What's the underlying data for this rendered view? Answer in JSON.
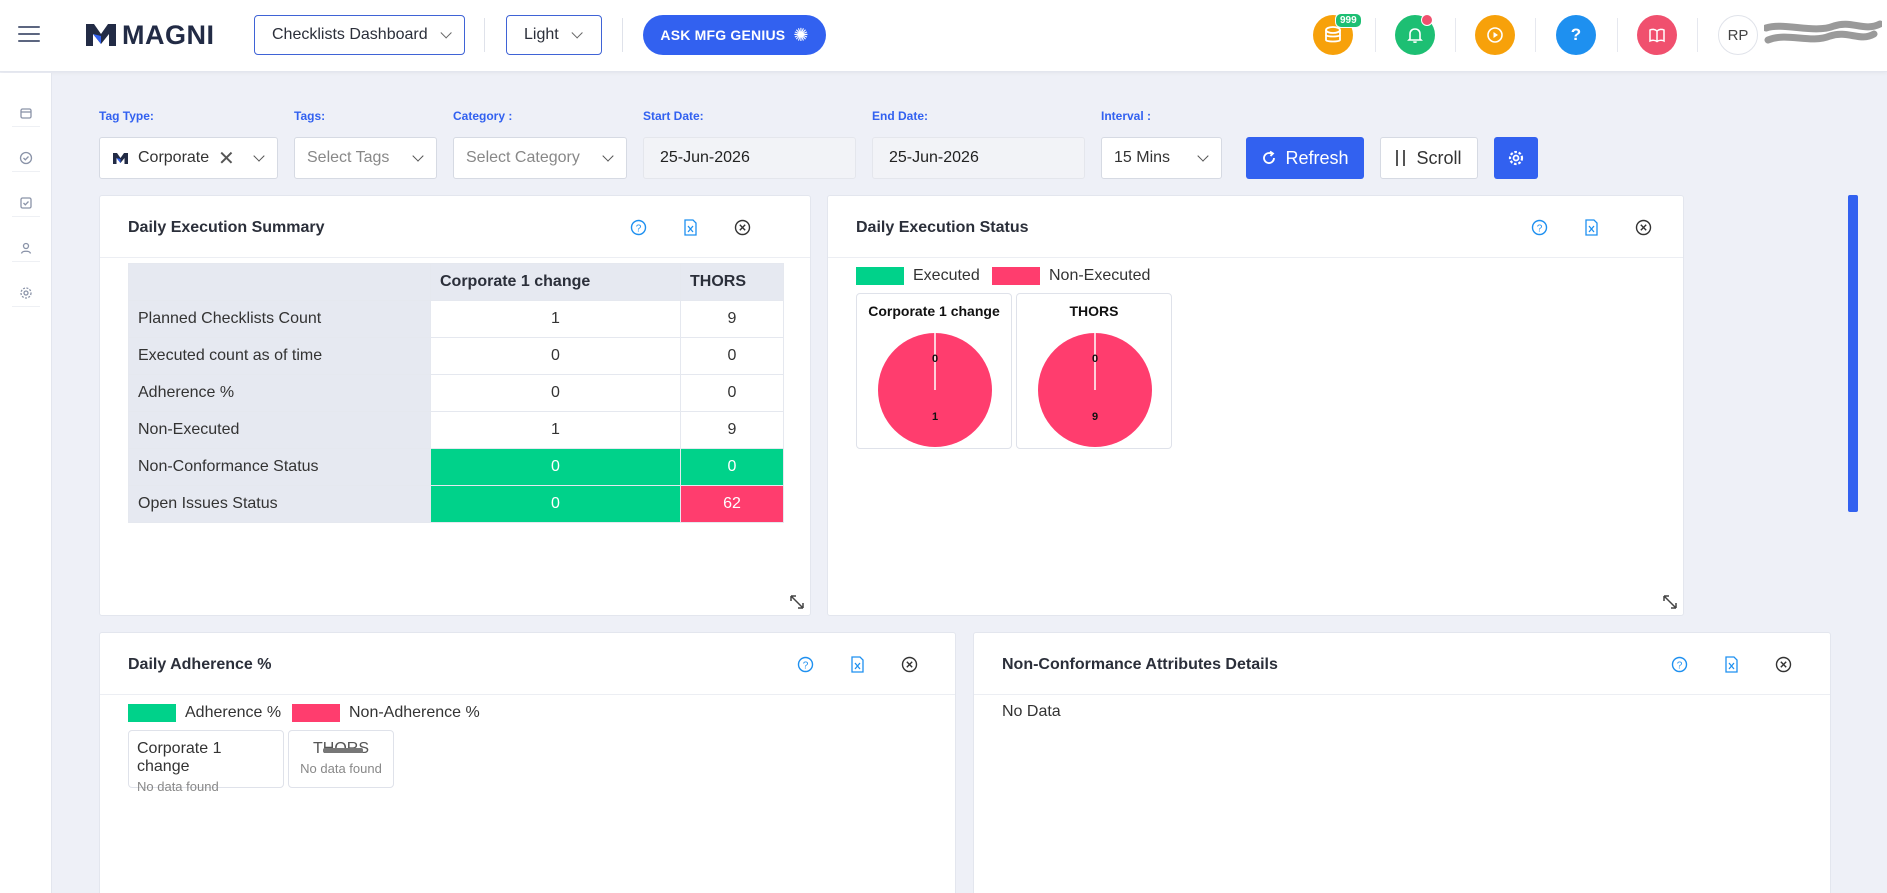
{
  "header": {
    "logo_text": "MAGNI",
    "dashboard_select": "Checklists Dashboard",
    "theme_select": "Light",
    "ask_button": "ASK MFG GENIUS",
    "coins_badge": "999",
    "help_label": "?",
    "avatar_initials": "RP"
  },
  "filters": {
    "tag_type_label": "Tag Type:",
    "tag_type_value": "Corporate",
    "tags_label": "Tags:",
    "tags_placeholder": "Select Tags",
    "category_label": "Category :",
    "category_placeholder": "Select Category",
    "start_date_label": "Start Date:",
    "start_date_value": "25-Jun-2026",
    "end_date_label": "End Date:",
    "end_date_value": "25-Jun-2026",
    "interval_label": "Interval :",
    "interval_value": "15 Mins",
    "refresh_label": "Refresh",
    "scroll_label": "Scroll"
  },
  "execution_summary": {
    "title": "Daily Execution Summary",
    "columns": [
      "",
      "Corporate 1 change",
      "THORS"
    ],
    "rows": [
      {
        "label": "Planned Checklists Count",
        "values": [
          "1",
          "9"
        ],
        "status": [
          "none",
          "none"
        ]
      },
      {
        "label": "Executed count as of time",
        "values": [
          "0",
          "0"
        ],
        "status": [
          "none",
          "none"
        ]
      },
      {
        "label": "Adherence %",
        "values": [
          "0",
          "0"
        ],
        "status": [
          "none",
          "none"
        ]
      },
      {
        "label": "Non-Executed",
        "values": [
          "1",
          "9"
        ],
        "status": [
          "none",
          "none"
        ]
      },
      {
        "label": "Non-Conformance Status",
        "values": [
          "0",
          "0"
        ],
        "status": [
          "green",
          "green"
        ]
      },
      {
        "label": "Open Issues Status",
        "values": [
          "0",
          "62"
        ],
        "status": [
          "green",
          "red"
        ]
      }
    ]
  },
  "execution_status": {
    "title": "Daily Execution Status",
    "legend": [
      {
        "label": "Executed",
        "color": "#00d28a"
      },
      {
        "label": "Non-Executed",
        "color": "#ff3d6e"
      }
    ],
    "pies": [
      {
        "title": "Corporate 1 change",
        "executed": "0",
        "non_executed": "1"
      },
      {
        "title": "THORS",
        "executed": "0",
        "non_executed": "9"
      }
    ]
  },
  "adherence": {
    "title": "Daily Adherence %",
    "legend": [
      {
        "label": "Adherence %",
        "color": "#00d28a"
      },
      {
        "label": "Non-Adherence %",
        "color": "#ff3d6e"
      }
    ],
    "boxes": [
      {
        "title": "Corporate 1 change",
        "sub": "No data found"
      },
      {
        "title": "THORS",
        "sub": "No data found"
      }
    ]
  },
  "nonconformance": {
    "title": "Non-Conformance Attributes Details",
    "empty_text": "No Data"
  }
}
